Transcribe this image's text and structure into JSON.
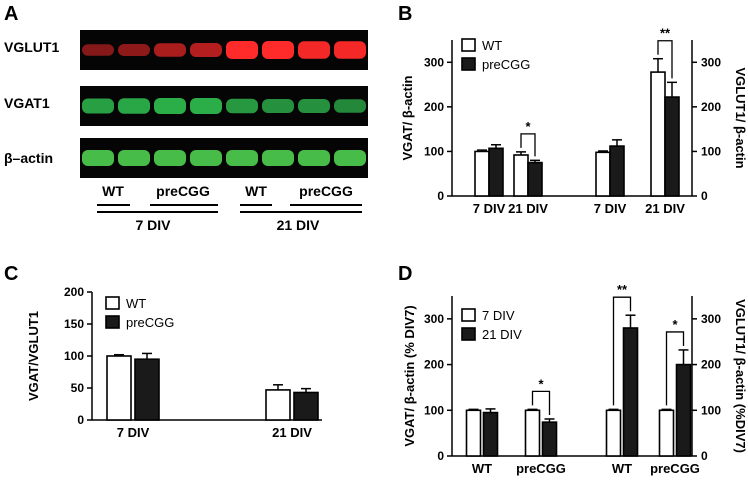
{
  "panels": {
    "A": {
      "letter": "A",
      "row_labels": [
        "VGLUT1",
        "VGAT1",
        "β–actin"
      ],
      "lane_labels": [
        "WT",
        "preCGG",
        "WT",
        "preCGG"
      ],
      "group_labels": [
        "7 DIV",
        "21 DIV"
      ],
      "band_intensity": {
        "VGLUT1": [
          0.35,
          0.4,
          0.55,
          0.6,
          1.0,
          1.0,
          0.95,
          0.95
        ],
        "VGAT1": [
          0.7,
          0.75,
          0.8,
          0.8,
          0.65,
          0.6,
          0.6,
          0.55
        ],
        "β–actin": [
          0.8,
          0.8,
          0.8,
          0.8,
          0.8,
          0.8,
          0.8,
          0.8
        ]
      },
      "colors": {
        "VGLUT1": "#ff2a2a",
        "VGAT1": "#33cc55",
        "β–actin": "#55dd55",
        "background": "#050505"
      }
    },
    "B": {
      "letter": "B"
    },
    "C": {
      "letter": "C"
    },
    "D": {
      "letter": "D"
    }
  },
  "chart_data": [
    {
      "panel": "B",
      "type": "bar",
      "ylabel": "VGAT/ β-actin",
      "y2label": "VGLUT1/ β-actin",
      "ylim": [
        0,
        350
      ],
      "yticks": [
        0,
        100,
        200,
        300
      ],
      "y2ticks": [
        0,
        100,
        200,
        300
      ],
      "groups": [
        {
          "label": "7 DIV",
          "values": [
            100,
            107
          ],
          "errors": [
            3,
            8
          ]
        },
        {
          "label": "21 DIV",
          "values": [
            92,
            75
          ],
          "errors": [
            7,
            5
          ]
        },
        {
          "label": "7 DIV",
          "values": [
            98,
            112
          ],
          "errors": [
            3,
            14
          ]
        },
        {
          "label": "21 DIV",
          "values": [
            278,
            222
          ],
          "errors": [
            30,
            33
          ]
        }
      ],
      "series": [
        {
          "name": "WT",
          "fill": "#ffffff"
        },
        {
          "name": "preCGG",
          "fill": "#1a1a1a"
        }
      ],
      "significance": [
        {
          "group": 1,
          "label": "*"
        },
        {
          "group": 3,
          "label": "**"
        }
      ],
      "legend": "top-left"
    },
    {
      "panel": "C",
      "type": "bar",
      "ylabel": "VGAT/VGLUT1",
      "ylim": [
        0,
        200
      ],
      "yticks": [
        0,
        50,
        100,
        150,
        200
      ],
      "groups": [
        {
          "label": "7 DIV",
          "values": [
            100,
            95
          ],
          "errors": [
            2,
            9
          ]
        },
        {
          "label": "21 DIV",
          "values": [
            47,
            43
          ],
          "errors": [
            8,
            6
          ]
        }
      ],
      "series": [
        {
          "name": "WT",
          "fill": "#ffffff"
        },
        {
          "name": "preCGG",
          "fill": "#1a1a1a"
        }
      ],
      "legend": "top-left"
    },
    {
      "panel": "D",
      "type": "bar",
      "ylabel": "VGAT/ β-actin (% DIV7)",
      "y2label": "VGLUT1/ β-actin (%DIV7)",
      "ylim": [
        0,
        350
      ],
      "yticks": [
        0,
        100,
        200,
        300
      ],
      "y2ticks": [
        0,
        100,
        200,
        300
      ],
      "groups": [
        {
          "label": "WT",
          "values": [
            100,
            95
          ],
          "errors": [
            2,
            8
          ]
        },
        {
          "label": "preCGG",
          "values": [
            100,
            74
          ],
          "errors": [
            2,
            7
          ]
        },
        {
          "label": "WT",
          "values": [
            100,
            280
          ],
          "errors": [
            2,
            28
          ]
        },
        {
          "label": "preCGG",
          "values": [
            100,
            200
          ],
          "errors": [
            2,
            32
          ]
        }
      ],
      "series": [
        {
          "name": "7 DIV",
          "fill": "#ffffff"
        },
        {
          "name": "21 DIV",
          "fill": "#1a1a1a"
        }
      ],
      "significance": [
        {
          "group": 1,
          "label": "*"
        },
        {
          "group": 2,
          "label": "**"
        },
        {
          "group": 3,
          "label": "*"
        }
      ],
      "legend": "top-left"
    }
  ]
}
